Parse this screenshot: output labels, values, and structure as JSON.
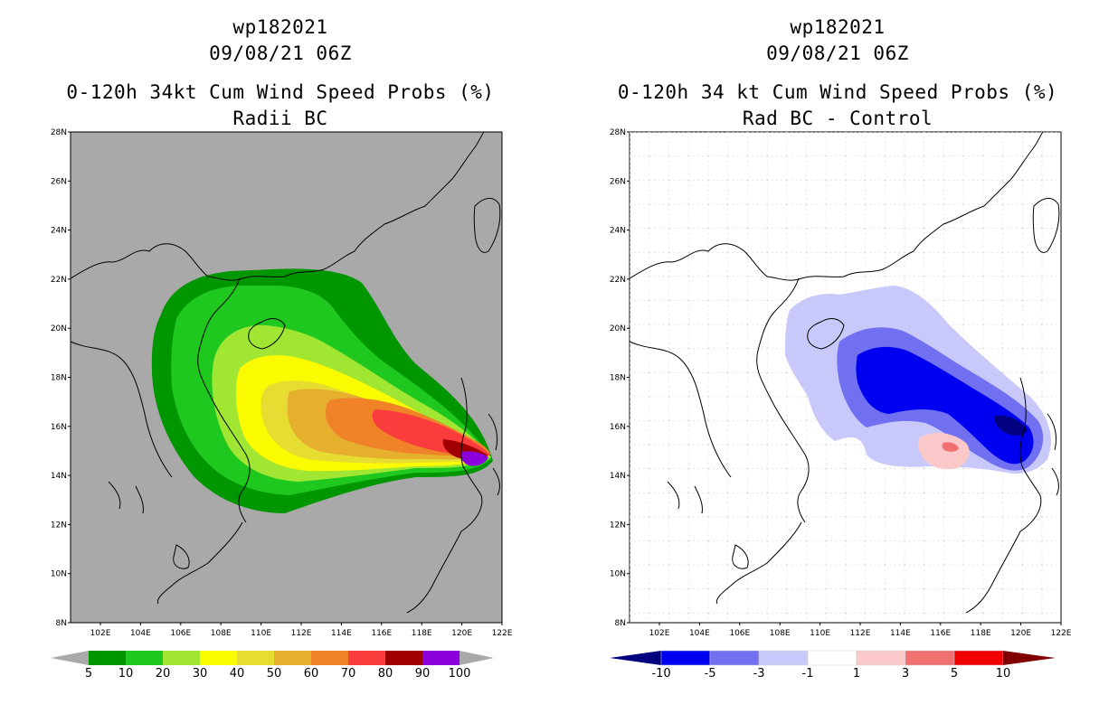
{
  "left_panel": {
    "title_lines": [
      "wp182021",
      "09/08/21 06Z",
      "0-120h 34kt Cum Wind Speed Probs (%)",
      "Radii BC"
    ],
    "colorbar": {
      "labels": [
        "5",
        "10",
        "20",
        "30",
        "40",
        "50",
        "60",
        "70",
        "80",
        "90",
        "100"
      ],
      "colors": [
        "#009600",
        "#1ec81e",
        "#a0e632",
        "#fafa00",
        "#e6dc32",
        "#e6af2d",
        "#f08228",
        "#fa3c3c",
        "#a00000",
        "#8c00dc"
      ]
    },
    "background_color": "#a9a9a9"
  },
  "right_panel": {
    "title_lines": [
      "wp182021",
      "09/08/21 06Z",
      "0-120h 34 kt Cum Wind Speed Probs (%)",
      "Rad BC - Control"
    ],
    "colorbar": {
      "labels": [
        "-10",
        "-5",
        "-3",
        "-1",
        "1",
        "3",
        "5",
        "10"
      ],
      "colors": [
        "#0000f0",
        "#7070f0",
        "#c8c8fa",
        "#ffffff",
        "#fac8c8",
        "#f07070",
        "#f00000"
      ],
      "end_low": "#000080",
      "end_high": "#800000"
    },
    "background_color": "#ffffff"
  },
  "axes": {
    "lat_labels": [
      "28N",
      "26N",
      "24N",
      "22N",
      "20N",
      "18N",
      "16N",
      "14N",
      "12N",
      "10N",
      "8N"
    ],
    "lon_labels": [
      "102E",
      "104E",
      "106E",
      "108E",
      "110E",
      "112E",
      "114E",
      "116E",
      "118E",
      "120E",
      "122E"
    ]
  }
}
